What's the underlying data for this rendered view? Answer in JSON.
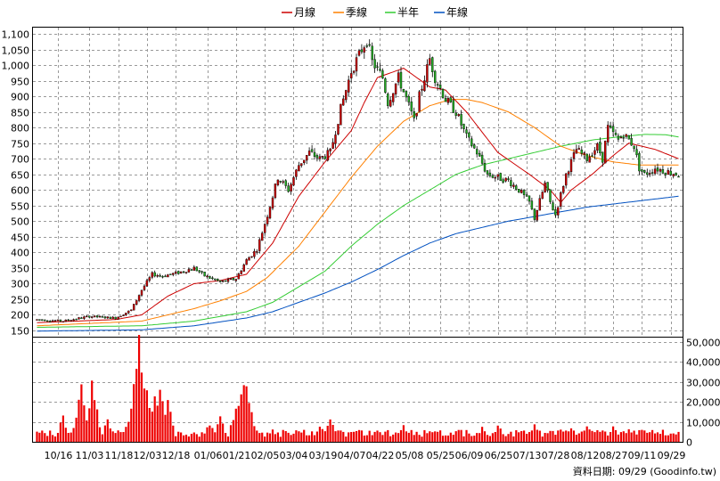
{
  "chart_data": {
    "type": "candlestick-with-volume",
    "legend": [
      {
        "name": "月線",
        "color": "#cc0000"
      },
      {
        "name": "季線",
        "color": "#ff8000"
      },
      {
        "name": "半年",
        "color": "#33cc33"
      },
      {
        "name": "年線",
        "color": "#0050c0"
      }
    ],
    "candle_colors": {
      "up": "#cc0000",
      "down": "#22aa22"
    },
    "price_axis": {
      "ylim": [
        130,
        1120
      ],
      "ticks": [
        "150",
        "200",
        "250",
        "300",
        "350",
        "400",
        "450",
        "500",
        "550",
        "600",
        "650",
        "700",
        "750",
        "800",
        "850",
        "900",
        "950",
        "1,000",
        "1,050",
        "1,100"
      ],
      "tick_values": [
        150,
        200,
        250,
        300,
        350,
        400,
        450,
        500,
        550,
        600,
        650,
        700,
        750,
        800,
        850,
        900,
        950,
        1000,
        1050,
        1100
      ]
    },
    "volume_axis": {
      "ylim": [
        0,
        52000
      ],
      "ticks": [
        "0",
        "10,000",
        "20,000",
        "30,000",
        "40,000",
        "50,000"
      ],
      "tick_values": [
        0,
        10000,
        20000,
        30000,
        40000,
        50000
      ],
      "bar_color": "#ee0000"
    },
    "x_labels": [
      {
        "label": "10/16",
        "day": 8
      },
      {
        "label": "11/03",
        "day": 20
      },
      {
        "label": "11/18",
        "day": 31
      },
      {
        "label": "12/03",
        "day": 42
      },
      {
        "label": "12/18",
        "day": 53
      },
      {
        "label": "01/06",
        "day": 65
      },
      {
        "label": "01/21",
        "day": 76
      },
      {
        "label": "02/05",
        "day": 87
      },
      {
        "label": "03/04",
        "day": 98
      },
      {
        "label": "03/19",
        "day": 109
      },
      {
        "label": "04/07",
        "day": 120
      },
      {
        "label": "04/22",
        "day": 131
      },
      {
        "label": "05/08",
        "day": 142
      },
      {
        "label": "05/25",
        "day": 154
      },
      {
        "label": "06/09",
        "day": 165
      },
      {
        "label": "06/25",
        "day": 176
      },
      {
        "label": "07/13",
        "day": 187
      },
      {
        "label": "07/28",
        "day": 198
      },
      {
        "label": "08/12",
        "day": 209
      },
      {
        "label": "08/27",
        "day": 220
      },
      {
        "label": "09/11",
        "day": 231
      },
      {
        "label": "09/29",
        "day": 242
      }
    ],
    "trading_days": 246,
    "price_keypoints": [
      [
        0,
        185
      ],
      [
        10,
        180
      ],
      [
        20,
        195
      ],
      [
        30,
        190
      ],
      [
        36,
        215
      ],
      [
        40,
        280
      ],
      [
        44,
        330
      ],
      [
        48,
        325
      ],
      [
        54,
        335
      ],
      [
        60,
        350
      ],
      [
        64,
        325
      ],
      [
        70,
        305
      ],
      [
        76,
        315
      ],
      [
        80,
        375
      ],
      [
        84,
        410
      ],
      [
        88,
        520
      ],
      [
        92,
        640
      ],
      [
        96,
        600
      ],
      [
        100,
        680
      ],
      [
        104,
        720
      ],
      [
        108,
        700
      ],
      [
        112,
        720
      ],
      [
        116,
        860
      ],
      [
        120,
        980
      ],
      [
        124,
        1050
      ],
      [
        126,
        1080
      ],
      [
        128,
        1010
      ],
      [
        132,
        960
      ],
      [
        134,
        880
      ],
      [
        138,
        960
      ],
      [
        142,
        870
      ],
      [
        144,
        820
      ],
      [
        146,
        900
      ],
      [
        150,
        1020
      ],
      [
        152,
        960
      ],
      [
        156,
        890
      ],
      [
        160,
        850
      ],
      [
        164,
        770
      ],
      [
        168,
        720
      ],
      [
        172,
        650
      ],
      [
        176,
        640
      ],
      [
        180,
        630
      ],
      [
        184,
        600
      ],
      [
        188,
        560
      ],
      [
        190,
        510
      ],
      [
        194,
        620
      ],
      [
        196,
        560
      ],
      [
        198,
        520
      ],
      [
        202,
        650
      ],
      [
        206,
        730
      ],
      [
        210,
        700
      ],
      [
        214,
        740
      ],
      [
        216,
        700
      ],
      [
        218,
        800
      ],
      [
        222,
        760
      ],
      [
        224,
        780
      ],
      [
        228,
        740
      ],
      [
        230,
        670
      ],
      [
        232,
        650
      ],
      [
        236,
        670
      ],
      [
        240,
        660
      ],
      [
        245,
        650
      ]
    ],
    "ma_monthly": [
      [
        0,
        175
      ],
      [
        30,
        185
      ],
      [
        40,
        200
      ],
      [
        50,
        260
      ],
      [
        60,
        300
      ],
      [
        70,
        310
      ],
      [
        80,
        330
      ],
      [
        90,
        430
      ],
      [
        100,
        580
      ],
      [
        110,
        690
      ],
      [
        120,
        790
      ],
      [
        125,
        880
      ],
      [
        130,
        960
      ],
      [
        140,
        990
      ],
      [
        150,
        930
      ],
      [
        156,
        920
      ],
      [
        164,
        850
      ],
      [
        176,
        720
      ],
      [
        188,
        650
      ],
      [
        196,
        600
      ],
      [
        200,
        560
      ],
      [
        204,
        600
      ],
      [
        212,
        650
      ],
      [
        220,
        710
      ],
      [
        226,
        750
      ],
      [
        236,
        730
      ],
      [
        245,
        700
      ]
    ],
    "ma_quarter": [
      [
        0,
        165
      ],
      [
        40,
        180
      ],
      [
        60,
        220
      ],
      [
        70,
        245
      ],
      [
        80,
        275
      ],
      [
        88,
        320
      ],
      [
        100,
        420
      ],
      [
        110,
        530
      ],
      [
        120,
        640
      ],
      [
        130,
        740
      ],
      [
        140,
        820
      ],
      [
        150,
        870
      ],
      [
        158,
        890
      ],
      [
        164,
        890
      ],
      [
        170,
        880
      ],
      [
        180,
        850
      ],
      [
        190,
        800
      ],
      [
        200,
        740
      ],
      [
        210,
        710
      ],
      [
        220,
        690
      ],
      [
        230,
        680
      ],
      [
        245,
        680
      ]
    ],
    "ma_half": [
      [
        0,
        160
      ],
      [
        40,
        165
      ],
      [
        60,
        180
      ],
      [
        80,
        210
      ],
      [
        90,
        240
      ],
      [
        100,
        290
      ],
      [
        110,
        340
      ],
      [
        120,
        420
      ],
      [
        130,
        490
      ],
      [
        140,
        550
      ],
      [
        150,
        600
      ],
      [
        160,
        650
      ],
      [
        170,
        680
      ],
      [
        180,
        700
      ],
      [
        190,
        720
      ],
      [
        200,
        740
      ],
      [
        212,
        760
      ],
      [
        222,
        770
      ],
      [
        232,
        778
      ],
      [
        240,
        777
      ],
      [
        245,
        770
      ]
    ],
    "ma_year": [
      [
        0,
        148
      ],
      [
        40,
        152
      ],
      [
        60,
        165
      ],
      [
        80,
        190
      ],
      [
        90,
        210
      ],
      [
        100,
        240
      ],
      [
        110,
        270
      ],
      [
        120,
        305
      ],
      [
        130,
        345
      ],
      [
        140,
        390
      ],
      [
        150,
        430
      ],
      [
        160,
        460
      ],
      [
        170,
        480
      ],
      [
        180,
        500
      ],
      [
        190,
        515
      ],
      [
        200,
        530
      ],
      [
        210,
        545
      ],
      [
        220,
        555
      ],
      [
        230,
        565
      ],
      [
        240,
        575
      ],
      [
        245,
        580
      ]
    ],
    "volume_peaks": [
      [
        10,
        13000
      ],
      [
        16,
        22000
      ],
      [
        17,
        28000
      ],
      [
        21,
        28000
      ],
      [
        22,
        24000
      ],
      [
        27,
        12000
      ],
      [
        34,
        8000
      ],
      [
        37,
        24000
      ],
      [
        38,
        40000
      ],
      [
        39,
        52000
      ],
      [
        40,
        34000
      ],
      [
        41,
        30000
      ],
      [
        42,
        24000
      ],
      [
        44,
        18000
      ],
      [
        45,
        24000
      ],
      [
        47,
        30000
      ],
      [
        50,
        22000
      ],
      [
        60,
        5000
      ],
      [
        66,
        10000
      ],
      [
        70,
        12000
      ],
      [
        76,
        20000
      ],
      [
        78,
        24000
      ],
      [
        79,
        30000
      ],
      [
        80,
        28000
      ],
      [
        82,
        14000
      ],
      [
        90,
        6000
      ],
      [
        100,
        6000
      ],
      [
        108,
        9000
      ],
      [
        112,
        12000
      ],
      [
        120,
        6000
      ],
      [
        130,
        7000
      ],
      [
        140,
        9000
      ],
      [
        150,
        6000
      ],
      [
        160,
        5000
      ],
      [
        170,
        7000
      ],
      [
        176,
        9000
      ],
      [
        186,
        7000
      ],
      [
        190,
        9000
      ],
      [
        196,
        6000
      ],
      [
        200,
        8000
      ],
      [
        204,
        7000
      ],
      [
        210,
        9000
      ],
      [
        214,
        7000
      ],
      [
        220,
        8000
      ],
      [
        226,
        7000
      ],
      [
        232,
        4000
      ],
      [
        240,
        3000
      ],
      [
        245,
        2000
      ]
    ],
    "source_text": "資料日期: 09/29 (Goodinfo.tw)"
  }
}
